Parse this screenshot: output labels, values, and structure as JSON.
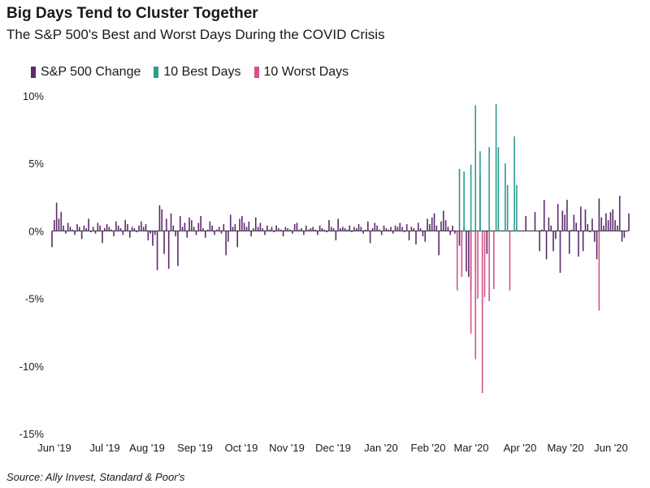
{
  "chart_data": {
    "type": "bar",
    "title": "Big Days Tend to Cluster Together",
    "subtitle": "The S&P 500's Best and Worst Days During the COVID Crisis",
    "source": "Source: Ally Invest, Standard & Poor's",
    "ylim": [
      -15,
      10
    ],
    "y_ticks": [
      {
        "value": 10,
        "label": "10%"
      },
      {
        "value": 5,
        "label": "5%"
      },
      {
        "value": 0,
        "label": "0%"
      },
      {
        "value": -5,
        "label": "-5%"
      },
      {
        "value": -10,
        "label": "-10%"
      },
      {
        "value": -15,
        "label": "-15%"
      }
    ],
    "x_ticks": [
      "Jun '19",
      "Jul '19",
      "Aug '19",
      "Sep '19",
      "Oct '19",
      "Nov '19",
      "Dec '19",
      "Jan '20",
      "Feb '20",
      "Mar '20",
      "Apr '20",
      "May '20",
      "Jun '20"
    ],
    "legend": [
      {
        "name": "S&P 500 Change",
        "color": "#5c2a6e"
      },
      {
        "name": "10 Best Days",
        "color": "#2a9d8f"
      },
      {
        "name": "10 Worst Days",
        "color": "#d6528a"
      }
    ],
    "series": [
      {
        "name": "S&P 500 Change",
        "color": "#5c2a6e",
        "values": [
          -1.2,
          0.8,
          2.1,
          0.9,
          1.4,
          0.4,
          -0.2,
          0.6,
          0.3,
          0.1,
          -0.3,
          0.5,
          0.3,
          -0.6,
          0.4,
          0.2,
          0.9,
          -0.1,
          0.3,
          -0.2,
          0.6,
          0.4,
          -0.9,
          0.2,
          0.5,
          0.3,
          0.1,
          -0.4,
          0.7,
          0.4,
          0.2,
          -0.3,
          0.8,
          0.5,
          -0.5,
          0.3,
          0.2,
          -0.1,
          0.4,
          0.7,
          0.3,
          0.5,
          -0.7,
          -0.2,
          -1.1,
          -0.3,
          -2.9,
          1.9,
          1.6,
          -1.7,
          0.9,
          -2.8,
          1.3,
          0.4,
          -0.4,
          -2.6,
          1.1,
          0.3,
          0.6,
          -0.5,
          1.0,
          0.8,
          0.3,
          -0.3,
          0.6,
          1.1,
          0.2,
          -0.5,
          0.1,
          0.7,
          0.4,
          -0.3,
          0.1,
          0.3,
          -0.2,
          0.5,
          -1.8,
          -0.8,
          1.2,
          0.3,
          0.5,
          -1.2,
          0.9,
          1.1,
          0.6,
          0.3,
          0.7,
          -0.4,
          0.2,
          1.0,
          0.3,
          0.6,
          0.2,
          -0.3,
          0.4,
          0.1,
          0.3,
          -0.1,
          0.4,
          0.2,
          0.1,
          -0.4,
          0.3,
          0.2,
          0.1,
          -0.2,
          0.5,
          0.6,
          0.1,
          0.2,
          -0.3,
          0.4,
          0.1,
          0.2,
          0.3,
          0.1,
          -0.3,
          0.4,
          0.2,
          0.1,
          -0.1,
          0.8,
          0.3,
          0.2,
          -0.7,
          0.9,
          0.2,
          0.3,
          0.2,
          0.1,
          0.4,
          -0.1,
          0.3,
          0.2,
          0.5,
          0.3,
          -0.2,
          0.1,
          0.7,
          -0.9,
          0.2,
          0.6,
          0.4,
          0.1,
          -0.3,
          0.4,
          0.2,
          0.1,
          0.3,
          -0.2,
          0.4,
          0.3,
          0.6,
          0.3,
          -0.1,
          0.5,
          -0.7,
          0.3,
          0.2,
          -1.0,
          0.6,
          0.2,
          -0.4,
          -0.8,
          0.9,
          0.5,
          1.0,
          1.3,
          0.4,
          -1.8,
          0.7,
          1.5,
          0.8,
          0.3,
          -0.3,
          0.4,
          -0.2,
          -0.3,
          -1.1,
          -0.8,
          0.3,
          -3.0,
          -3.4,
          -4.4,
          null,
          -2.8,
          null,
          4.2,
          null,
          null,
          -1.7,
          null,
          null,
          null,
          null,
          null,
          null,
          null,
          null,
          null,
          null,
          null,
          null,
          null,
          null,
          null,
          null,
          1.1,
          null,
          null,
          null,
          1.4,
          null,
          -1.5,
          0.1,
          2.3,
          -2.1,
          1.0,
          0.4,
          -1.5,
          -0.6,
          2.0,
          -3.1,
          1.5,
          1.2,
          2.3,
          -1.7,
          0.1,
          1.2,
          0.6,
          -1.9,
          1.8,
          -1.5,
          1.6,
          0.5,
          -0.1,
          0.9,
          -0.8,
          -2.1,
          2.4,
          1.0,
          0.4,
          1.3,
          0.8,
          1.4,
          1.6,
          0.8,
          0.4,
          2.6,
          -0.8,
          -0.5,
          null,
          1.3
        ]
      },
      {
        "name": "10 Best Days",
        "color": "#2a9d8f",
        "values": [
          null,
          null,
          null,
          null,
          null,
          null,
          null,
          null,
          null,
          null,
          null,
          null,
          null,
          null,
          null,
          null,
          null,
          null,
          null,
          null,
          null,
          null,
          null,
          null,
          null,
          null,
          null,
          null,
          null,
          null,
          null,
          null,
          null,
          null,
          null,
          null,
          null,
          null,
          null,
          null,
          null,
          null,
          null,
          null,
          null,
          null,
          null,
          null,
          null,
          null,
          null,
          null,
          null,
          null,
          null,
          null,
          null,
          null,
          null,
          null,
          null,
          null,
          null,
          null,
          null,
          null,
          null,
          null,
          null,
          null,
          null,
          null,
          null,
          null,
          null,
          null,
          null,
          null,
          null,
          null,
          null,
          null,
          null,
          null,
          null,
          null,
          null,
          null,
          null,
          null,
          null,
          null,
          null,
          null,
          null,
          null,
          null,
          null,
          null,
          null,
          null,
          null,
          null,
          null,
          null,
          null,
          null,
          null,
          null,
          null,
          null,
          null,
          null,
          null,
          null,
          null,
          null,
          null,
          null,
          null,
          null,
          null,
          null,
          null,
          null,
          null,
          null,
          null,
          null,
          null,
          null,
          null,
          null,
          null,
          null,
          null,
          null,
          null,
          null,
          null,
          null,
          null,
          null,
          null,
          null,
          null,
          null,
          null,
          null,
          null,
          null,
          null,
          null,
          null,
          null,
          null,
          null,
          null,
          null,
          null,
          null,
          null,
          null,
          null,
          null,
          null,
          null,
          null,
          null,
          null,
          null,
          null,
          null,
          null,
          null,
          null,
          null,
          null,
          4.6,
          null,
          4.4,
          null,
          null,
          4.9,
          null,
          9.3,
          null,
          5.9,
          null,
          null,
          null,
          6.2,
          null,
          null,
          9.4,
          6.2,
          null,
          null,
          5.0,
          3.4,
          null,
          null,
          7.0,
          3.4,
          null,
          null,
          null,
          null,
          null,
          null,
          null,
          null,
          null,
          null,
          null,
          null,
          null,
          null,
          null,
          null,
          null,
          null,
          null,
          null,
          null,
          null,
          null,
          null,
          null,
          null,
          null,
          null,
          null,
          null,
          null,
          null,
          null,
          null,
          null,
          null,
          null,
          null
        ]
      },
      {
        "name": "10 Worst Days",
        "color": "#d6528a",
        "values": [
          null,
          null,
          null,
          null,
          null,
          null,
          null,
          null,
          null,
          null,
          null,
          null,
          null,
          null,
          null,
          null,
          null,
          null,
          null,
          null,
          null,
          null,
          null,
          null,
          null,
          null,
          null,
          null,
          null,
          null,
          null,
          null,
          null,
          null,
          null,
          null,
          null,
          null,
          null,
          null,
          null,
          null,
          null,
          null,
          null,
          null,
          null,
          null,
          null,
          null,
          null,
          null,
          null,
          null,
          null,
          null,
          null,
          null,
          null,
          null,
          null,
          null,
          null,
          null,
          null,
          null,
          null,
          null,
          null,
          null,
          null,
          null,
          null,
          null,
          null,
          null,
          null,
          null,
          null,
          null,
          null,
          null,
          null,
          null,
          null,
          null,
          null,
          null,
          null,
          null,
          null,
          null,
          null,
          null,
          null,
          null,
          null,
          null,
          null,
          null,
          null,
          null,
          null,
          null,
          null,
          null,
          null,
          null,
          null,
          null,
          null,
          null,
          null,
          null,
          null,
          null,
          null,
          null,
          null,
          null,
          null,
          null,
          null,
          null,
          null,
          null,
          null,
          null,
          null,
          null,
          null,
          null,
          null,
          null,
          null,
          null,
          null,
          null,
          null,
          null,
          null,
          null,
          null,
          null,
          null,
          null,
          null,
          null,
          null,
          null,
          null,
          null,
          null,
          null,
          null,
          null,
          null,
          null,
          null,
          null,
          null,
          null,
          null,
          null,
          null,
          null,
          null,
          null,
          null,
          null,
          null,
          null,
          null,
          null,
          null,
          null,
          null,
          -4.4,
          null,
          -3.4,
          null,
          null,
          null,
          -7.6,
          null,
          -9.5,
          -5.0,
          null,
          -12.0,
          -4.9,
          null,
          -5.2,
          null,
          -4.3,
          null,
          null,
          null,
          null,
          null,
          null,
          -4.4,
          null,
          null,
          null,
          null,
          null,
          null,
          null,
          null,
          null,
          null,
          null,
          null,
          null,
          null,
          null,
          null,
          null,
          null,
          null,
          null,
          null,
          null,
          null,
          null,
          null,
          null,
          null,
          null,
          null,
          null,
          null,
          null,
          null,
          null,
          null,
          null,
          null,
          null,
          -5.9,
          null
        ]
      }
    ]
  }
}
